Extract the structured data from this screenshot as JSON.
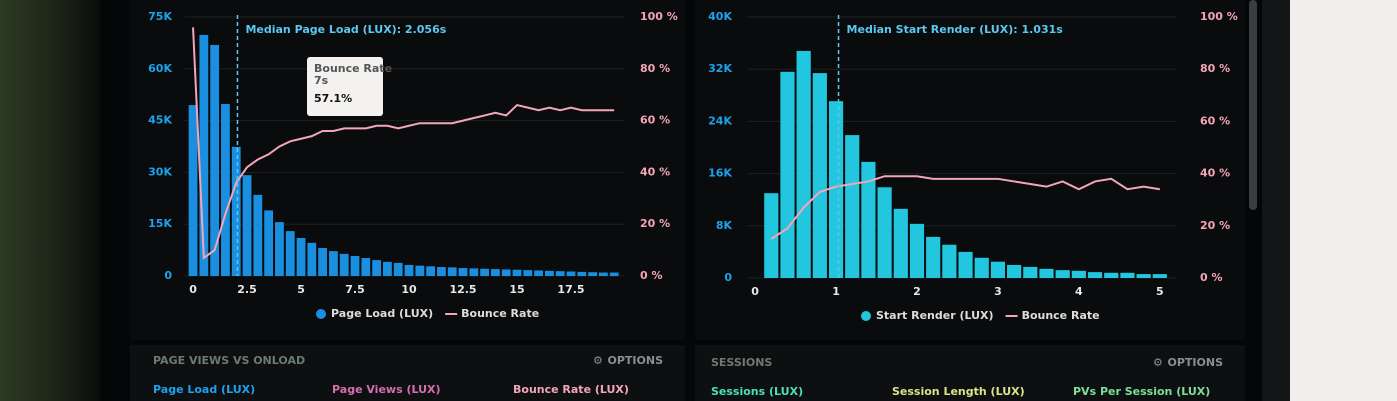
{
  "chart_data": [
    {
      "type": "bar",
      "annotation": {
        "text": "Median Page Load (LUX): 2.056s",
        "x": 2.056
      },
      "tooltip": {
        "title": "Bounce Rate",
        "subtitle": "7s",
        "value_label": "57.1%"
      },
      "x": [
        0,
        0.5,
        1,
        1.5,
        2,
        2.5,
        3,
        3.5,
        4,
        4.5,
        5,
        5.5,
        6,
        6.5,
        7,
        7.5,
        8,
        8.5,
        9,
        9.5,
        10,
        10.5,
        11,
        11.5,
        12,
        12.5,
        13,
        13.5,
        14,
        14.5,
        15,
        15.5,
        16,
        16.5,
        17,
        17.5,
        18,
        18.5,
        19,
        19.5
      ],
      "series": [
        {
          "name": "Page Load (LUX)",
          "color": "#1a8fe0",
          "values": [
            49500,
            69800,
            66900,
            49800,
            37400,
            29200,
            23500,
            19000,
            15600,
            13000,
            11000,
            9600,
            8100,
            7200,
            6400,
            5800,
            5200,
            4600,
            4100,
            3800,
            3200,
            3000,
            2800,
            2600,
            2500,
            2300,
            2200,
            2100,
            2000,
            1900,
            1800,
            1700,
            1600,
            1500,
            1400,
            1300,
            1200,
            1100,
            1000,
            1000
          ]
        },
        {
          "name": "Bounce Rate",
          "color": "#f4a6b8",
          "axis": "y2",
          "values": [
            96,
            7,
            10,
            24,
            36,
            42,
            45,
            47,
            50,
            52,
            53,
            54,
            56,
            56,
            57,
            57,
            57,
            58,
            58,
            57,
            58,
            59,
            59,
            59,
            59,
            60,
            61,
            62,
            63,
            62,
            66,
            65,
            64,
            65,
            64,
            65,
            64,
            64,
            64,
            64
          ]
        }
      ],
      "xlim": [
        -0.4,
        20
      ],
      "xticks": [
        0,
        2.5,
        5,
        7.5,
        10,
        12.5,
        15,
        17.5
      ],
      "ylim": [
        0,
        75000
      ],
      "yticks": [
        0,
        {
          "value": 15000,
          "label": "15K"
        },
        {
          "value": 30000,
          "label": "30K"
        },
        {
          "value": 45000,
          "label": "45K"
        },
        {
          "value": 60000,
          "label": "60K"
        },
        {
          "value": 75000,
          "label": "75K"
        }
      ],
      "y2lim": [
        0,
        100
      ],
      "y2ticks": [
        {
          "value": 0,
          "label": "0 %"
        },
        {
          "value": 20,
          "label": "20 %"
        },
        {
          "value": 40,
          "label": "40 %"
        },
        {
          "value": 60,
          "label": "60 %"
        },
        {
          "value": 80,
          "label": "80 %"
        },
        {
          "value": 100,
          "label": "100 %"
        }
      ],
      "grid": true
    },
    {
      "type": "bar",
      "annotation": {
        "text": "Median Start Render (LUX): 1.031s",
        "x": 1.031
      },
      "x": [
        0.2,
        0.4,
        0.6,
        0.8,
        1,
        1.2,
        1.4,
        1.6,
        1.8,
        2,
        2.2,
        2.4,
        2.6,
        2.8,
        3,
        3.2,
        3.4,
        3.6,
        3.8,
        4,
        4.2,
        4.4,
        4.6,
        4.8,
        5
      ],
      "series": [
        {
          "name": "Start Render (LUX)",
          "color": "#22c6de",
          "values": [
            13000,
            31600,
            34800,
            31400,
            27100,
            21900,
            17800,
            13900,
            10600,
            8300,
            6300,
            5100,
            4000,
            3100,
            2500,
            2000,
            1700,
            1400,
            1200,
            1100,
            900,
            800,
            800,
            600,
            600
          ]
        },
        {
          "name": "Bounce Rate",
          "color": "#f4a6b8",
          "axis": "y2",
          "values": [
            15,
            19,
            27,
            33,
            35,
            36,
            37,
            39,
            39,
            39,
            38,
            38,
            38,
            38,
            38,
            37,
            36,
            35,
            37,
            34,
            37,
            38,
            34,
            35,
            34
          ]
        }
      ],
      "xlim": [
        -0.1,
        5.2
      ],
      "xticks": [
        0,
        1,
        2,
        3,
        4,
        5
      ],
      "ylim": [
        0,
        40000
      ],
      "yticks": [
        0,
        {
          "value": 8000,
          "label": "8K"
        },
        {
          "value": 16000,
          "label": "16K"
        },
        {
          "value": 24000,
          "label": "24K"
        },
        {
          "value": 32000,
          "label": "32K"
        },
        {
          "value": 40000,
          "label": "40K"
        }
      ],
      "y2lim": [
        0,
        100
      ],
      "y2ticks": [
        {
          "value": 0,
          "label": "0 %"
        },
        {
          "value": 20,
          "label": "20 %"
        },
        {
          "value": 40,
          "label": "40 %"
        },
        {
          "value": 60,
          "label": "60 %"
        },
        {
          "value": 80,
          "label": "80 %"
        },
        {
          "value": 100,
          "label": "100 %"
        }
      ],
      "grid": true
    }
  ],
  "panels": [
    {
      "title": "PAGE VIEWS VS ONLOAD",
      "action": "OPTIONS",
      "columns": [
        "Page Load (LUX)",
        "Page Views (LUX)",
        "Bounce Rate (LUX)"
      ]
    },
    {
      "title": "SESSIONS",
      "action": "OPTIONS",
      "columns": [
        "Sessions (LUX)",
        "Session Length (LUX)",
        "PVs Per Session (LUX)"
      ]
    }
  ]
}
